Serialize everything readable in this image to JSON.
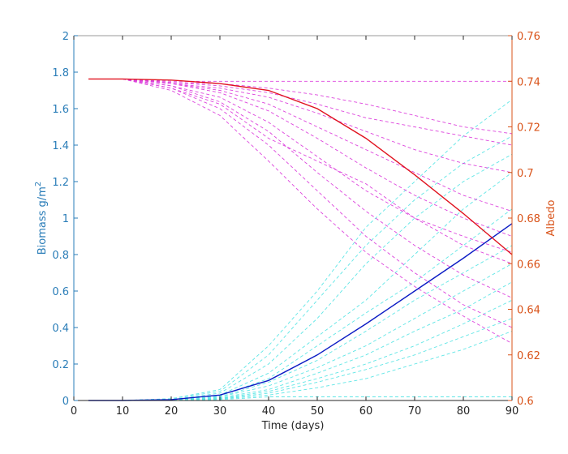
{
  "chart_data": {
    "type": "line",
    "xlabel": "Time (days)",
    "ylabel_left": "Biomass g/m",
    "ylabel_left_superscript": "2",
    "ylabel_right": "Albedo",
    "xlim": [
      0,
      90
    ],
    "ylim_left": [
      0,
      2
    ],
    "ylim_right": [
      0.6,
      0.76
    ],
    "grid": false,
    "x_ticks": [
      "0",
      "10",
      "20",
      "30",
      "40",
      "50",
      "60",
      "70",
      "80",
      "90"
    ],
    "y_left_ticks": [
      "0",
      "0.2",
      "0.4",
      "0.6",
      "0.8",
      "1",
      "1.2",
      "1.4",
      "1.6",
      "1.8",
      "2"
    ],
    "y_right_ticks": [
      "0.6",
      "0.62",
      "0.64",
      "0.66",
      "0.68",
      "0.7",
      "0.72",
      "0.74",
      "0.76"
    ],
    "colors": {
      "left_axis": "#2a7db8",
      "right_axis": "#d95319",
      "biomass_mean": "#0b1bc4",
      "albedo_mean": "#e0121e",
      "biomass_ensemble": "#5fe6e6",
      "albedo_ensemble": "#dd44dd",
      "box": "#9a9a9a"
    },
    "x": [
      3,
      10,
      20,
      30,
      40,
      50,
      60,
      70,
      80,
      90
    ],
    "series": [
      {
        "axis": "left",
        "style": "solid",
        "role": "biomass_mean",
        "values": [
          0,
          0,
          0.005,
          0.03,
          0.11,
          0.25,
          0.42,
          0.6,
          0.78,
          0.97
        ]
      },
      {
        "axis": "right",
        "style": "solid",
        "role": "albedo_mean",
        "values": [
          0.741,
          0.741,
          0.7405,
          0.739,
          0.736,
          0.728,
          0.715,
          0.699,
          0.682,
          0.664
        ]
      },
      {
        "axis": "left",
        "style": "dashed",
        "role": "biomass_ensemble",
        "values": [
          0,
          0,
          0.01,
          0.06,
          0.3,
          0.6,
          0.95,
          1.2,
          1.45,
          1.65
        ]
      },
      {
        "axis": "left",
        "style": "dashed",
        "role": "biomass_ensemble",
        "values": [
          0,
          0,
          0.01,
          0.05,
          0.25,
          0.55,
          0.85,
          1.1,
          1.3,
          1.45
        ]
      },
      {
        "axis": "left",
        "style": "dashed",
        "role": "biomass_ensemble",
        "values": [
          0,
          0,
          0.005,
          0.04,
          0.2,
          0.45,
          0.75,
          1.0,
          1.2,
          1.35
        ]
      },
      {
        "axis": "left",
        "style": "dashed",
        "role": "biomass_ensemble",
        "values": [
          0,
          0,
          0.005,
          0.03,
          0.15,
          0.35,
          0.55,
          0.8,
          1.05,
          1.25
        ]
      },
      {
        "axis": "left",
        "style": "dashed",
        "role": "biomass_ensemble",
        "values": [
          0,
          0,
          0.004,
          0.025,
          0.12,
          0.3,
          0.48,
          0.65,
          0.85,
          1.05
        ]
      },
      {
        "axis": "left",
        "style": "dashed",
        "role": "biomass_ensemble",
        "values": [
          0,
          0,
          0.003,
          0.02,
          0.1,
          0.22,
          0.38,
          0.55,
          0.7,
          0.85
        ]
      },
      {
        "axis": "left",
        "style": "dashed",
        "role": "biomass_ensemble",
        "values": [
          0,
          0,
          0.003,
          0.02,
          0.08,
          0.18,
          0.3,
          0.45,
          0.6,
          0.75
        ]
      },
      {
        "axis": "left",
        "style": "dashed",
        "role": "biomass_ensemble",
        "values": [
          0,
          0,
          0.002,
          0.015,
          0.06,
          0.15,
          0.25,
          0.38,
          0.5,
          0.65
        ]
      },
      {
        "axis": "left",
        "style": "dashed",
        "role": "biomass_ensemble",
        "values": [
          0,
          0,
          0.002,
          0.012,
          0.05,
          0.12,
          0.2,
          0.3,
          0.42,
          0.55
        ]
      },
      {
        "axis": "left",
        "style": "dashed",
        "role": "biomass_ensemble",
        "values": [
          0,
          0,
          0.002,
          0.01,
          0.04,
          0.1,
          0.17,
          0.25,
          0.35,
          0.45
        ]
      },
      {
        "axis": "left",
        "style": "dashed",
        "role": "biomass_ensemble",
        "values": [
          0,
          0,
          0.001,
          0.008,
          0.03,
          0.07,
          0.12,
          0.2,
          0.28,
          0.38
        ]
      },
      {
        "axis": "left",
        "style": "dashed",
        "role": "biomass_ensemble",
        "values": [
          0,
          0,
          0.001,
          0.005,
          0.02,
          0.02,
          0.02,
          0.02,
          0.02,
          0.02
        ]
      },
      {
        "axis": "right",
        "style": "dashed",
        "role": "albedo_ensemble",
        "values": [
          0.741,
          0.741,
          0.74,
          0.74,
          0.74,
          0.74,
          0.74,
          0.74,
          0.74,
          0.74
        ]
      },
      {
        "axis": "right",
        "style": "dashed",
        "role": "albedo_ensemble",
        "values": [
          0.741,
          0.741,
          0.7395,
          0.739,
          0.737,
          0.734,
          0.73,
          0.725,
          0.72,
          0.717
        ]
      },
      {
        "axis": "right",
        "style": "dashed",
        "role": "albedo_ensemble",
        "values": [
          0.741,
          0.741,
          0.7395,
          0.738,
          0.735,
          0.73,
          0.724,
          0.72,
          0.716,
          0.712
        ]
      },
      {
        "axis": "right",
        "style": "dashed",
        "role": "albedo_ensemble",
        "values": [
          0.741,
          0.741,
          0.739,
          0.737,
          0.733,
          0.726,
          0.718,
          0.71,
          0.704,
          0.7
        ]
      },
      {
        "axis": "right",
        "style": "dashed",
        "role": "albedo_ensemble",
        "values": [
          0.741,
          0.741,
          0.739,
          0.736,
          0.73,
          0.72,
          0.71,
          0.7,
          0.69,
          0.683
        ]
      },
      {
        "axis": "right",
        "style": "dashed",
        "role": "albedo_ensemble",
        "values": [
          0.741,
          0.741,
          0.739,
          0.735,
          0.727,
          0.715,
          0.702,
          0.69,
          0.68,
          0.672
        ]
      },
      {
        "axis": "right",
        "style": "dashed",
        "role": "albedo_ensemble",
        "values": [
          0.741,
          0.741,
          0.738,
          0.733,
          0.722,
          0.707,
          0.692,
          0.68,
          0.668,
          0.66
        ]
      },
      {
        "axis": "right",
        "style": "dashed",
        "role": "albedo_ensemble",
        "values": [
          0.741,
          0.741,
          0.738,
          0.731,
          0.718,
          0.7,
          0.683,
          0.668,
          0.655,
          0.645
        ]
      },
      {
        "axis": "right",
        "style": "dashed",
        "role": "albedo_ensemble",
        "values": [
          0.741,
          0.741,
          0.737,
          0.728,
          0.712,
          0.692,
          0.672,
          0.656,
          0.642,
          0.632
        ]
      },
      {
        "axis": "right",
        "style": "dashed",
        "role": "albedo_ensemble",
        "values": [
          0.741,
          0.741,
          0.736,
          0.725,
          0.705,
          0.684,
          0.665,
          0.65,
          0.637,
          0.625
        ]
      },
      {
        "axis": "right",
        "style": "dashed",
        "role": "albedo_ensemble",
        "values": [
          0.741,
          0.741,
          0.737,
          0.73,
          0.715,
          0.705,
          0.695,
          0.68,
          0.672,
          0.665
        ]
      }
    ]
  }
}
